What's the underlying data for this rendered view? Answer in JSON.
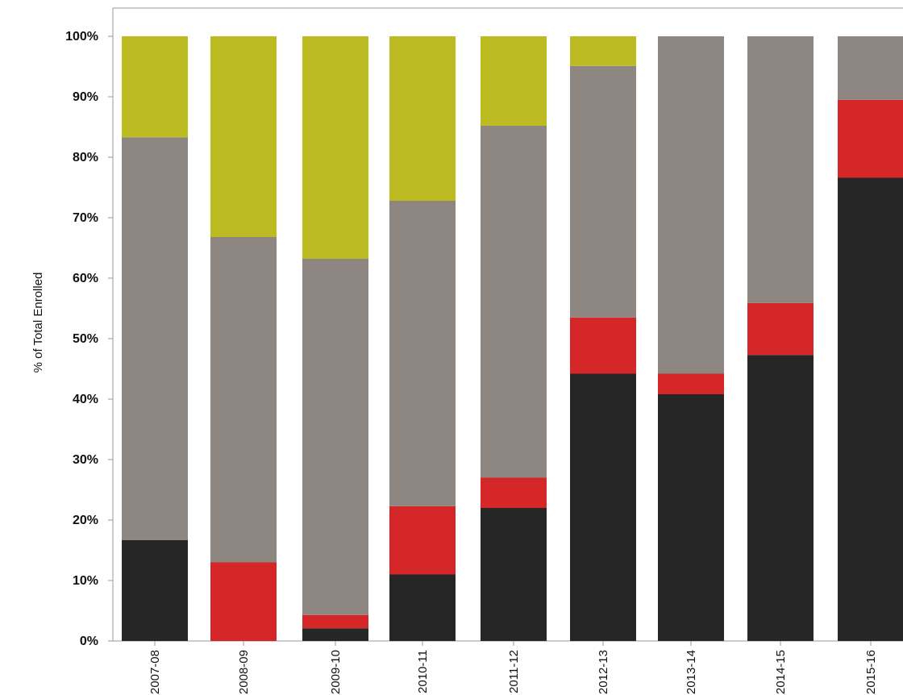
{
  "chart_data": {
    "type": "bar",
    "stacked": true,
    "ylabel": "% of Total Enrolled",
    "ylim": [
      0,
      100
    ],
    "y_ticks": [
      "0%",
      "10%",
      "20%",
      "30%",
      "40%",
      "50%",
      "60%",
      "70%",
      "80%",
      "90%",
      "100%"
    ],
    "categories": [
      "2007-08",
      "2008-09",
      "2009-10",
      "2010-11",
      "2011-12",
      "2012-13",
      "2013-14",
      "2014-15",
      "2015-16"
    ],
    "series": [
      {
        "color": "#262626",
        "values": [
          16.7,
          0,
          2.1,
          11.0,
          22.0,
          44.2,
          40.8,
          47.3,
          76.6
        ]
      },
      {
        "color": "#d62728",
        "values": [
          0,
          13.0,
          2.2,
          11.3,
          5.0,
          9.3,
          3.4,
          8.6,
          12.9
        ]
      },
      {
        "color": "#8e8680",
        "values": [
          66.6,
          53.8,
          58.9,
          50.5,
          58.2,
          41.6,
          55.8,
          44.1,
          10.5
        ]
      },
      {
        "color": "#bdbb22",
        "values": [
          16.7,
          33.2,
          36.8,
          27.2,
          14.8,
          4.9,
          0,
          0,
          0
        ]
      }
    ]
  }
}
